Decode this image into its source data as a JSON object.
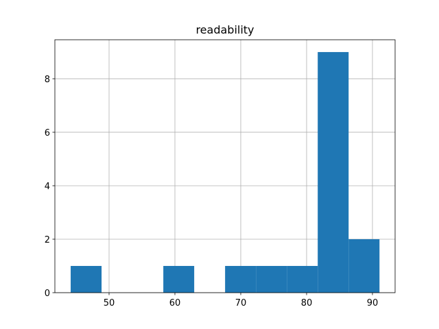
{
  "chart_data": {
    "type": "histogram",
    "title": "readability",
    "bins": [
      44.17,
      48.86,
      53.55,
      58.24,
      62.93,
      67.62,
      72.31,
      77.0,
      81.69,
      86.38,
      91.07
    ],
    "values": [
      1,
      0,
      0,
      1,
      0,
      1,
      1,
      1,
      9,
      2
    ],
    "color": "#1f77b4",
    "xlim": [
      41.77,
      93.44
    ],
    "xticks": [
      50,
      60,
      70,
      80,
      90
    ],
    "ylim": [
      0,
      9.46
    ],
    "yticks": [
      0,
      2,
      4,
      6,
      8
    ],
    "grid": true
  }
}
